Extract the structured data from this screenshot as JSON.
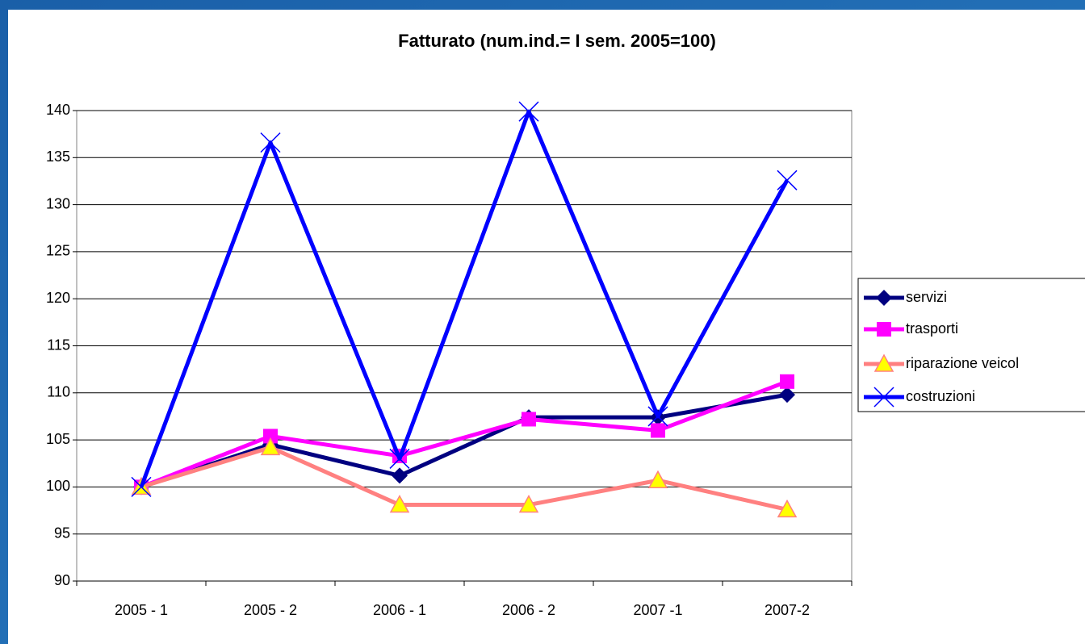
{
  "chart_data": {
    "type": "line",
    "title": "Fatturato (num.ind.= I sem. 2005=100)",
    "categories": [
      "2005 - 1",
      "2005 - 2",
      "2006 - 1",
      "2006 - 2",
      "2007 -1",
      "2007-2"
    ],
    "series": [
      {
        "name": "servizi",
        "color": "#000080",
        "marker": "diamond",
        "values": [
          100,
          104.5,
          101.2,
          107.4,
          107.4,
          109.8
        ]
      },
      {
        "name": "trasporti",
        "color": "#ff00ff",
        "marker": "square",
        "values": [
          100,
          105.4,
          103.3,
          107.2,
          106,
          111.2
        ]
      },
      {
        "name": "riparazione veicol",
        "color": "#ff8080",
        "marker": "triangle",
        "values": [
          100,
          104.2,
          98.1,
          98.1,
          100.7,
          97.6
        ]
      },
      {
        "name": "costruzioni",
        "color": "#0000ff",
        "marker": "x",
        "values": [
          100,
          136.6,
          103,
          139.9,
          107.5,
          132.6
        ]
      }
    ],
    "ylim": [
      90,
      140
    ],
    "yticks": [
      90,
      95,
      100,
      105,
      110,
      115,
      120,
      125,
      130,
      135,
      140
    ],
    "grid": true,
    "legend": "right"
  }
}
